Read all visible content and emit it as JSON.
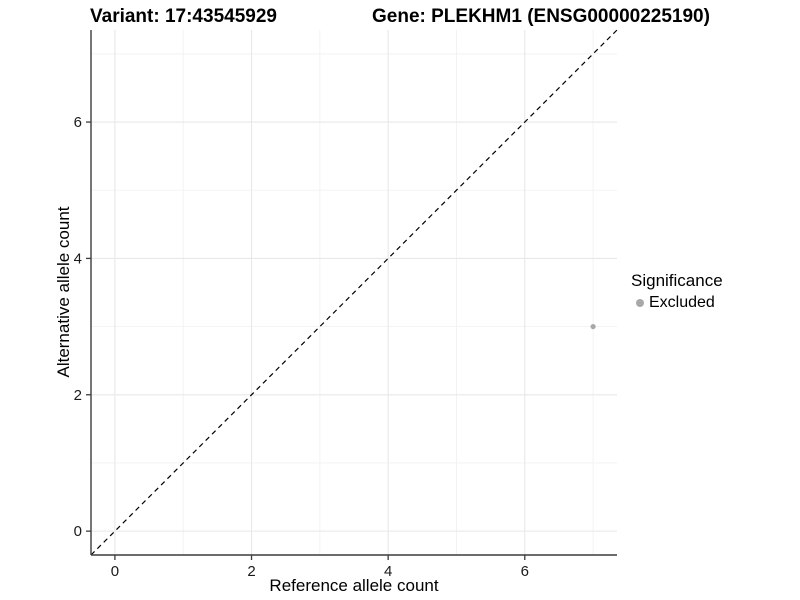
{
  "titles": {
    "variant": "Variant: 17:43545929",
    "gene": "Gene: PLEKHM1 (ENSG00000225190)"
  },
  "chart_data": {
    "type": "scatter",
    "title_left": "Variant: 17:43545929",
    "title_right": "Gene: PLEKHM1 (ENSG00000225190)",
    "xlabel": "Reference allele count",
    "ylabel": "Alternative allele count",
    "xlim": [
      -0.35,
      7.35
    ],
    "ylim": [
      -0.35,
      7.35
    ],
    "x_ticks": [
      0,
      2,
      4,
      6
    ],
    "y_ticks": [
      0,
      2,
      4,
      6
    ],
    "x_minor_ticks": [
      1,
      3,
      5,
      7
    ],
    "y_minor_ticks": [
      1,
      3,
      5,
      7
    ],
    "grid": "major+minor",
    "legend_position": "right",
    "series": [
      {
        "name": "Excluded",
        "color": "#a8a8a8",
        "points": [
          {
            "x": 7,
            "y": 3
          }
        ]
      }
    ],
    "reference_line": {
      "kind": "identity",
      "label": "y = x",
      "style": "dashed",
      "color": "#000000"
    }
  },
  "legend": {
    "title": "Significance",
    "items": [
      {
        "label": "Excluded",
        "color": "#a8a8a8"
      }
    ]
  },
  "colors": {
    "background": "#ffffff",
    "grid_major": "#e8e8e8",
    "grid_minor": "#f2f2f2",
    "axis_line": "#3c3c3c",
    "tick_text": "#1a1a1a",
    "point": "#a8a8a8",
    "reference_line": "#000000"
  }
}
